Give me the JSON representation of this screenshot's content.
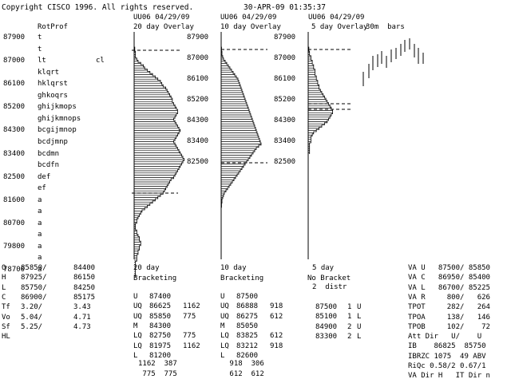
{
  "header": {
    "copyright": "Copyright CISCO 1996. All rights reserved.",
    "datetime": "30-APR-09 01:35:37"
  },
  "rotprof": {
    "title": "RotProf",
    "rows": [
      {
        "price": "87900",
        "letters": "t"
      },
      {
        "price": "",
        "letters": "t"
      },
      {
        "price": "87000",
        "letters": "lt"
      },
      {
        "price": "",
        "letters": "klqrt"
      },
      {
        "price": "86100",
        "letters": "hklqrst"
      },
      {
        "price": "",
        "letters": "ghkoqrs"
      },
      {
        "price": "85200",
        "letters": "ghijkmops"
      },
      {
        "price": "",
        "letters": "ghijkmnops"
      },
      {
        "price": "84300",
        "letters": "bcgijmnop"
      },
      {
        "price": "",
        "letters": "bcdjmnp"
      },
      {
        "price": "83400",
        "letters": "bcdmn"
      },
      {
        "price": "",
        "letters": "bcdfn"
      },
      {
        "price": "82500",
        "letters": "def"
      },
      {
        "price": "",
        "letters": "ef"
      },
      {
        "price": "81600",
        "letters": "a"
      },
      {
        "price": "",
        "letters": "a"
      },
      {
        "price": "80700",
        "letters": "a"
      },
      {
        "price": "",
        "letters": "a"
      },
      {
        "price": "79800",
        "letters": "a"
      },
      {
        "price": "",
        "letters": "a"
      },
      {
        "price": "78700",
        "letters": "a"
      }
    ],
    "cl_label": "cl"
  },
  "overlay20": {
    "header": "UU06 04/29/09",
    "title": "20 day Overlay",
    "prices": [
      "87900",
      "87000",
      "86100",
      "85200",
      "84300",
      "83400",
      "82500"
    ]
  },
  "overlay10": {
    "header": "UU06 04/29/09",
    "title": "10 day Overlay",
    "prices": [
      "87900",
      "87000",
      "86100",
      "85200",
      "84300",
      "83400",
      "82500"
    ]
  },
  "overlay5": {
    "header": "UU06 04/29/09",
    "title": "5 day Overlay",
    "bars_label": "30m  bars"
  },
  "profiles": {
    "p20": [
      0.5,
      0.5,
      1,
      1,
      1,
      2,
      3,
      5,
      7,
      8,
      10,
      12,
      14,
      16,
      18,
      20,
      21,
      22,
      24,
      25,
      26,
      27,
      28,
      29,
      29,
      30,
      31,
      32,
      33,
      33,
      32,
      31,
      30,
      31,
      32,
      33,
      34,
      35,
      34,
      33,
      32,
      31,
      30,
      31,
      32,
      33,
      34,
      35,
      36,
      37,
      38,
      37,
      36,
      35,
      34,
      33,
      32,
      31,
      30,
      28,
      27,
      26,
      25,
      24,
      23,
      22,
      20,
      18,
      16,
      14,
      12,
      10,
      8,
      6,
      5,
      4,
      3,
      2,
      2,
      1,
      1,
      1,
      2,
      2,
      3,
      4,
      4,
      5,
      5,
      4,
      4,
      3,
      3,
      2,
      2,
      2,
      1,
      1,
      1,
      1,
      1,
      1,
      1
    ],
    "p10": [
      0.5,
      0.5,
      1,
      1,
      2,
      3,
      5,
      7,
      9,
      11,
      13,
      15,
      17,
      19,
      21,
      22,
      23,
      24,
      25,
      26,
      27,
      28,
      29,
      30,
      31,
      32,
      33,
      34,
      35,
      36,
      37,
      38,
      39,
      40,
      41,
      42,
      43,
      44,
      45,
      46,
      47,
      48,
      49,
      50,
      47,
      44,
      42,
      40,
      38,
      36,
      34,
      32,
      30,
      28,
      26,
      24,
      22,
      20,
      18,
      16,
      14,
      12,
      10,
      8,
      6,
      4,
      3,
      2,
      1,
      1,
      0.5,
      0.5
    ],
    "p5": [
      0.5,
      0.5,
      1,
      1,
      2,
      2,
      3,
      3,
      4,
      4,
      5,
      5,
      5,
      6,
      6,
      7,
      7,
      8,
      8,
      9,
      10,
      11,
      12,
      13,
      14,
      15,
      16,
      17,
      18,
      18,
      17,
      16,
      15,
      14,
      12,
      10,
      8,
      6,
      4,
      3,
      2,
      2,
      2,
      1,
      1,
      1,
      1,
      1
    ]
  },
  "left_stats": [
    {
      "k": "O",
      "v1": "85850/",
      "v2": "84400"
    },
    {
      "k": "H",
      "v1": "87925/",
      "v2": "86150"
    },
    {
      "k": "L",
      "v1": "85750/",
      "v2": "84250"
    },
    {
      "k": "C",
      "v1": "86900/",
      "v2": "85175"
    },
    {
      "k": "Tf",
      "v1": "3.20/",
      "v2": "3.43"
    },
    {
      "k": "Vo",
      "v1": "5.04/",
      "v2": "4.71"
    },
    {
      "k": "Sf",
      "v1": "5.25/",
      "v2": "4.73"
    },
    {
      "k": "HL",
      "v1": "",
      "v2": ""
    }
  ],
  "bracket20": {
    "title1": "20 day",
    "title2": "Bracketing",
    "rows": [
      {
        "k": "U",
        "v": "87400",
        "n": ""
      },
      {
        "k": "UQ",
        "v": "86625",
        "n": "1162"
      },
      {
        "k": "UQ",
        "v": "85850",
        "n": "775"
      },
      {
        "k": "M",
        "v": "84300",
        "n": ""
      },
      {
        "k": "LQ",
        "v": "82750",
        "n": "775"
      },
      {
        "k": "LQ",
        "v": "81975",
        "n": "1162"
      },
      {
        "k": "L",
        "v": "81200",
        "n": ""
      }
    ],
    "foot1": "1162  387",
    "foot2": " 775  775"
  },
  "bracket10": {
    "title1": "10 day",
    "title2": "Bracketing",
    "rows": [
      {
        "k": "U",
        "v": "87500",
        "n": ""
      },
      {
        "k": "UQ",
        "v": "86888",
        "n": "918"
      },
      {
        "k": "UQ",
        "v": "86275",
        "n": "612"
      },
      {
        "k": "M",
        "v": "85050",
        "n": ""
      },
      {
        "k": "LQ",
        "v": "83825",
        "n": "612"
      },
      {
        "k": "LQ",
        "v": "83212",
        "n": "918"
      },
      {
        "k": "L",
        "v": "82600",
        "n": ""
      }
    ],
    "foot1": " 918  306",
    "foot2": " 612  612"
  },
  "bracket5": {
    "title1": "5 day",
    "title2": "No Bracket",
    "title3": "2  distr",
    "rows": [
      {
        "v": "87500",
        "n": "1",
        "d": "U"
      },
      {
        "v": "85100",
        "n": "1",
        "d": "L"
      },
      {
        "v": "84900",
        "n": "2",
        "d": "U"
      },
      {
        "v": "83300",
        "n": "2",
        "d": "L"
      }
    ]
  },
  "right_stats": [
    "VA U   87500/ 85850",
    "VA C   86950/ 85400",
    "VA L   86700/ 85225",
    "VA R     800/   626",
    "TPOT     282/   264",
    "TPOA     138/   146",
    "TPOB     102/    72",
    "Att Dir   U/    U",
    "IB    86825  85750",
    "IBRZC 1075  49 ABV",
    "RiQc 0.58/2 0.67/1",
    "VA Dir H   IT Dir n"
  ]
}
